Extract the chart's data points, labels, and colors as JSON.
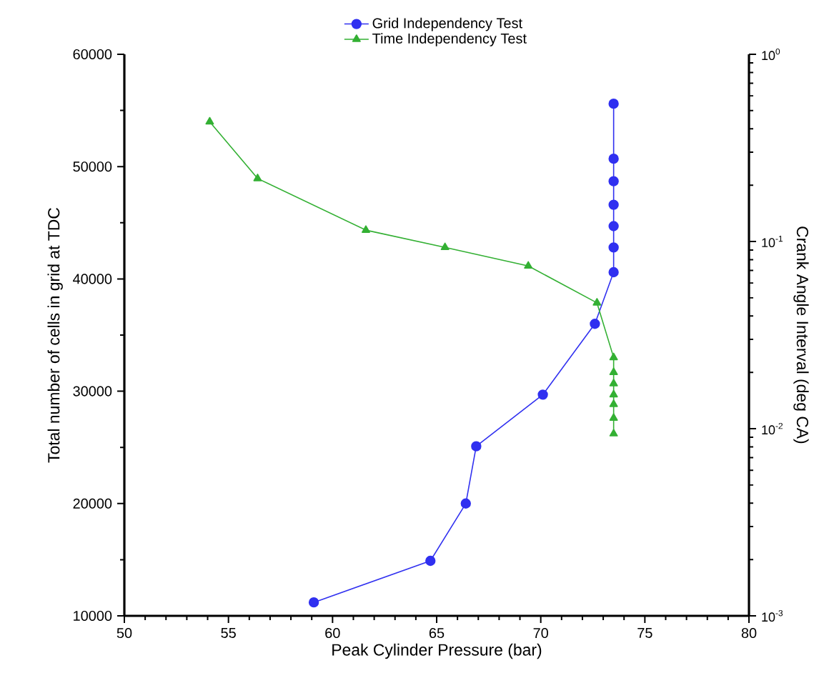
{
  "chart_data": {
    "type": "line",
    "xlabel": "Peak Cylinder Pressure (bar)",
    "ylabel": "Total number of cells in grid at TDC",
    "y2label": "Crank Angle Interval (deg CA)",
    "xlim": [
      50,
      80
    ],
    "xticks": [
      50,
      55,
      60,
      65,
      70,
      75,
      80
    ],
    "ylim": [
      10000,
      60000
    ],
    "yticks": [
      10000,
      20000,
      30000,
      40000,
      50000,
      60000
    ],
    "y2lim": [
      0.001,
      1
    ],
    "y2ticks": [
      {
        "value": 0.001,
        "label": "10$^{-3}$"
      },
      {
        "value": 0.01,
        "label": "10$^{-2}$"
      },
      {
        "value": 0.1,
        "label": "10$^{-1}$"
      },
      {
        "value": 1,
        "label": "10$^{0}$"
      }
    ],
    "log": "y2",
    "legend": "top",
    "grid": false,
    "series": [
      {
        "name": "Grid Independency Test",
        "color": "#3030f0",
        "marker": "circle",
        "x": [
          59.1,
          64.7,
          66.4,
          66.9,
          70.1,
          72.6,
          73.5,
          73.5,
          73.5,
          73.5,
          73.5,
          73.5,
          73.5
        ],
        "values": [
          11200,
          14900,
          20000,
          25100,
          29700,
          36000,
          40600,
          42800,
          44700,
          46600,
          48700,
          50700,
          55600
        ]
      },
      {
        "name": "Time Independency Test",
        "color": "#33b033",
        "marker": "triangle",
        "axis": "y2",
        "x": [
          54.1,
          56.4,
          61.6,
          65.4,
          69.4,
          72.7,
          73.5,
          73.5,
          73.5,
          73.5,
          73.5,
          73.5,
          73.5
        ],
        "values": [
          0.436,
          0.217,
          0.115,
          0.093,
          0.074,
          0.047,
          0.024,
          0.02,
          0.0174,
          0.0152,
          0.0135,
          0.0114,
          0.0094
        ]
      }
    ]
  }
}
